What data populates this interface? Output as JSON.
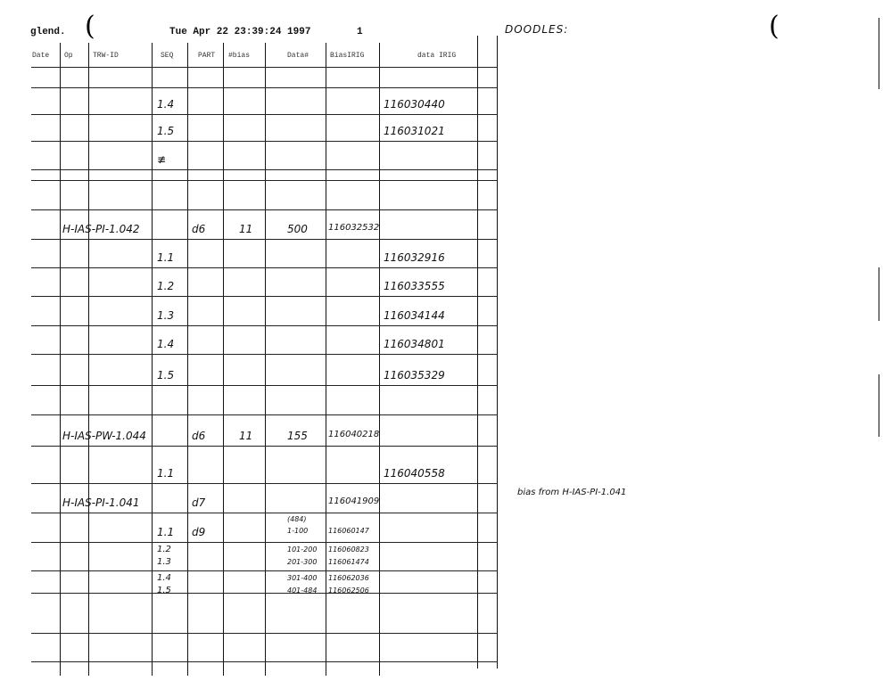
{
  "header": {
    "system": "glend.",
    "timestamp": "Tue Apr 22 23:39:24 1997",
    "page_number": "1"
  },
  "columns": [
    "Date",
    "Op",
    "TRW-ID",
    "SEQ",
    "PART",
    "#bias",
    "Data#",
    "BiasIRIG",
    "data IRIG"
  ],
  "rows": [
    {},
    {
      "seq": "1.4",
      "data_irig": "116030440"
    },
    {
      "seq": "1.5",
      "data_irig": "116031021"
    },
    {
      "seq": "≢"
    },
    {},
    {},
    {
      "trw_id": "H-IAS-PI-1.042",
      "part": "d6",
      "bias": "11",
      "data_num": "500",
      "bias_irig": "116032532"
    },
    {
      "seq": "1.1",
      "data_irig": "116032916"
    },
    {
      "seq": "1.2",
      "data_irig": "116033555"
    },
    {
      "seq": "1.3",
      "data_irig": "116034144"
    },
    {
      "seq": "1.4",
      "data_irig": "116034801"
    },
    {
      "seq": "1.5",
      "data_irig": "116035329"
    },
    {},
    {
      "trw_id": "H-IAS-PW-1.044",
      "part": "d6",
      "bias": "11",
      "data_num": "155",
      "bias_irig": "116040218"
    },
    {
      "seq": "1.1",
      "data_irig": "116040558"
    },
    {
      "trw_id": "H-IAS-PI-1.041",
      "part": "d7",
      "bias_irig": "116041909"
    },
    {
      "seq": "1.1",
      "part": "d9",
      "data_num_note": "(484)",
      "data_num": "1-100",
      "bias_irig": "116060147"
    },
    {
      "seq": "1.2\n1.3",
      "data_num": "101-200\n201-300",
      "bias_irig": "116060823\n116061474"
    },
    {
      "seq": "1.4\n1.5",
      "data_num": "301-400\n401-484",
      "bias_irig": "116062036\n116062506"
    },
    {},
    {}
  ],
  "notes": {
    "doodles": "DOODLES:",
    "bias_note": "bias   from   H-IAS-PI-1.041"
  }
}
